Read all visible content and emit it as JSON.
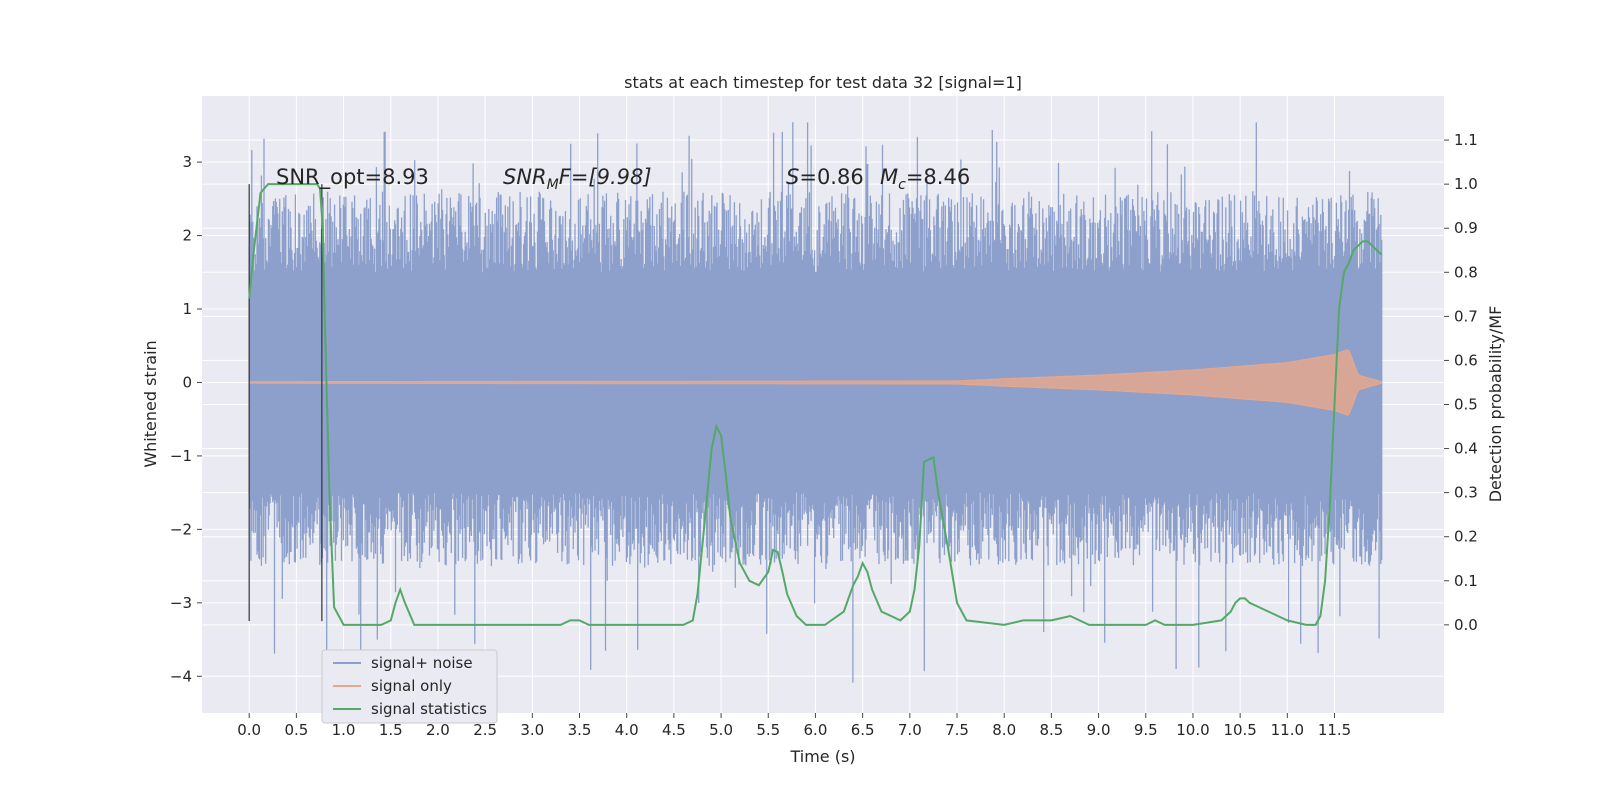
{
  "chart_data": {
    "type": "line",
    "title": "stats at each timestep for test data 32 [signal=1]",
    "xlabel": "Time (s)",
    "ylabel": "Whitened strain",
    "ylabel_right": "Detection probability/MF",
    "xlim": [
      -0.5,
      12.66
    ],
    "ylim": [
      -4.5,
      3.9
    ],
    "ylim_right": [
      -0.2,
      1.2
    ],
    "x_ticks": [
      "0.0",
      "0.5",
      "1.0",
      "1.5",
      "2.0",
      "2.5",
      "3.0",
      "3.5",
      "4.0",
      "4.5",
      "5.0",
      "5.5",
      "6.0",
      "6.5",
      "7.0",
      "7.5",
      "8.0",
      "8.5",
      "9.0",
      "9.5",
      "10.0",
      "10.5",
      "11.0",
      "11.5"
    ],
    "y_ticks": [
      "−4",
      "−3",
      "−2",
      "−1",
      "0",
      "1",
      "2",
      "3"
    ],
    "y_ticks_right": [
      "0.0",
      "0.1",
      "0.2",
      "0.3",
      "0.4",
      "0.5",
      "0.6",
      "0.7",
      "0.8",
      "0.9",
      "1.0",
      "1.1"
    ],
    "grid": true,
    "legend_position": "lower-left",
    "colors": {
      "signal_noise": "#8da0cb",
      "signal_only": "#e5a78e",
      "signal_statistics": "#55a868",
      "background": "#eaeaf2",
      "grid": "#ffffff"
    },
    "legend": [
      {
        "key": "signal_noise",
        "label": "signal+ noise"
      },
      {
        "key": "signal_only",
        "label": "signal only"
      },
      {
        "key": "signal_statistics",
        "label": "signal statistics"
      }
    ],
    "annotations": {
      "snr_opt": "SNR_opt=8.93",
      "snr_mf": "SNR",
      "snr_mf_sub": "M",
      "snr_mf_tail": "F=[9.98]",
      "s_label": "S",
      "s_value": "=0.86",
      "mc_label": "M",
      "mc_sub": "c",
      "mc_value": "=8.46"
    },
    "vertical_lines_x": [
      0.0,
      0.77
    ],
    "noise_band": {
      "x_start": 0.0,
      "x_end": 12.0,
      "typical_range": [
        -1.5,
        1.5
      ],
      "extreme_range": [
        -4.1,
        3.55
      ]
    },
    "signal_only_envelope": {
      "x": [
        0.0,
        7.5,
        8.0,
        9.0,
        10.0,
        11.0,
        11.5,
        11.65,
        11.75,
        12.0
      ],
      "amplitude": [
        0.01,
        0.02,
        0.05,
        0.1,
        0.17,
        0.27,
        0.38,
        0.45,
        0.1,
        0.01
      ]
    },
    "series": [
      {
        "name": "signal statistics",
        "axis": "right",
        "x": [
          0.0,
          0.05,
          0.12,
          0.2,
          0.3,
          0.5,
          0.6,
          0.68,
          0.72,
          0.75,
          0.78,
          0.8,
          0.85,
          0.9,
          1.0,
          1.2,
          1.4,
          1.5,
          1.55,
          1.6,
          1.65,
          1.75,
          2.0,
          2.5,
          3.0,
          3.3,
          3.4,
          3.45,
          3.5,
          3.6,
          4.0,
          4.5,
          4.6,
          4.7,
          4.75,
          4.82,
          4.9,
          4.95,
          5.0,
          5.05,
          5.1,
          5.2,
          5.3,
          5.4,
          5.5,
          5.55,
          5.6,
          5.65,
          5.7,
          5.8,
          5.9,
          6.1,
          6.3,
          6.4,
          6.45,
          6.5,
          6.55,
          6.6,
          6.7,
          6.8,
          6.9,
          7.0,
          7.05,
          7.1,
          7.15,
          7.2,
          7.25,
          7.3,
          7.4,
          7.5,
          7.6,
          8.0,
          8.2,
          8.5,
          8.7,
          8.9,
          9.0,
          9.5,
          9.6,
          9.7,
          10.0,
          10.3,
          10.4,
          10.45,
          10.5,
          10.55,
          10.6,
          10.8,
          11.0,
          11.2,
          11.3,
          11.35,
          11.4,
          11.45,
          11.5,
          11.55,
          11.6,
          11.65,
          11.7,
          11.75,
          11.8,
          11.85,
          11.9,
          11.95,
          12.0
        ],
        "values": [
          0.74,
          0.85,
          0.98,
          1.0,
          1.0,
          1.0,
          1.0,
          1.0,
          1.0,
          0.99,
          0.9,
          0.7,
          0.3,
          0.04,
          0.0,
          0.0,
          0.0,
          0.01,
          0.05,
          0.08,
          0.05,
          0.0,
          0.0,
          0.0,
          0.0,
          0.0,
          0.01,
          0.01,
          0.01,
          0.0,
          0.0,
          0.0,
          0.0,
          0.01,
          0.07,
          0.22,
          0.4,
          0.45,
          0.43,
          0.34,
          0.24,
          0.14,
          0.1,
          0.09,
          0.12,
          0.17,
          0.165,
          0.12,
          0.07,
          0.02,
          0.0,
          0.0,
          0.03,
          0.09,
          0.11,
          0.14,
          0.12,
          0.08,
          0.03,
          0.02,
          0.01,
          0.03,
          0.08,
          0.18,
          0.37,
          0.375,
          0.38,
          0.3,
          0.18,
          0.05,
          0.01,
          0.0,
          0.01,
          0.01,
          0.02,
          0.0,
          0.0,
          0.0,
          0.01,
          0.0,
          0.0,
          0.01,
          0.03,
          0.05,
          0.06,
          0.06,
          0.05,
          0.03,
          0.01,
          0.0,
          0.0,
          0.02,
          0.1,
          0.27,
          0.5,
          0.72,
          0.8,
          0.82,
          0.85,
          0.86,
          0.87,
          0.87,
          0.86,
          0.85,
          0.84
        ]
      }
    ]
  }
}
